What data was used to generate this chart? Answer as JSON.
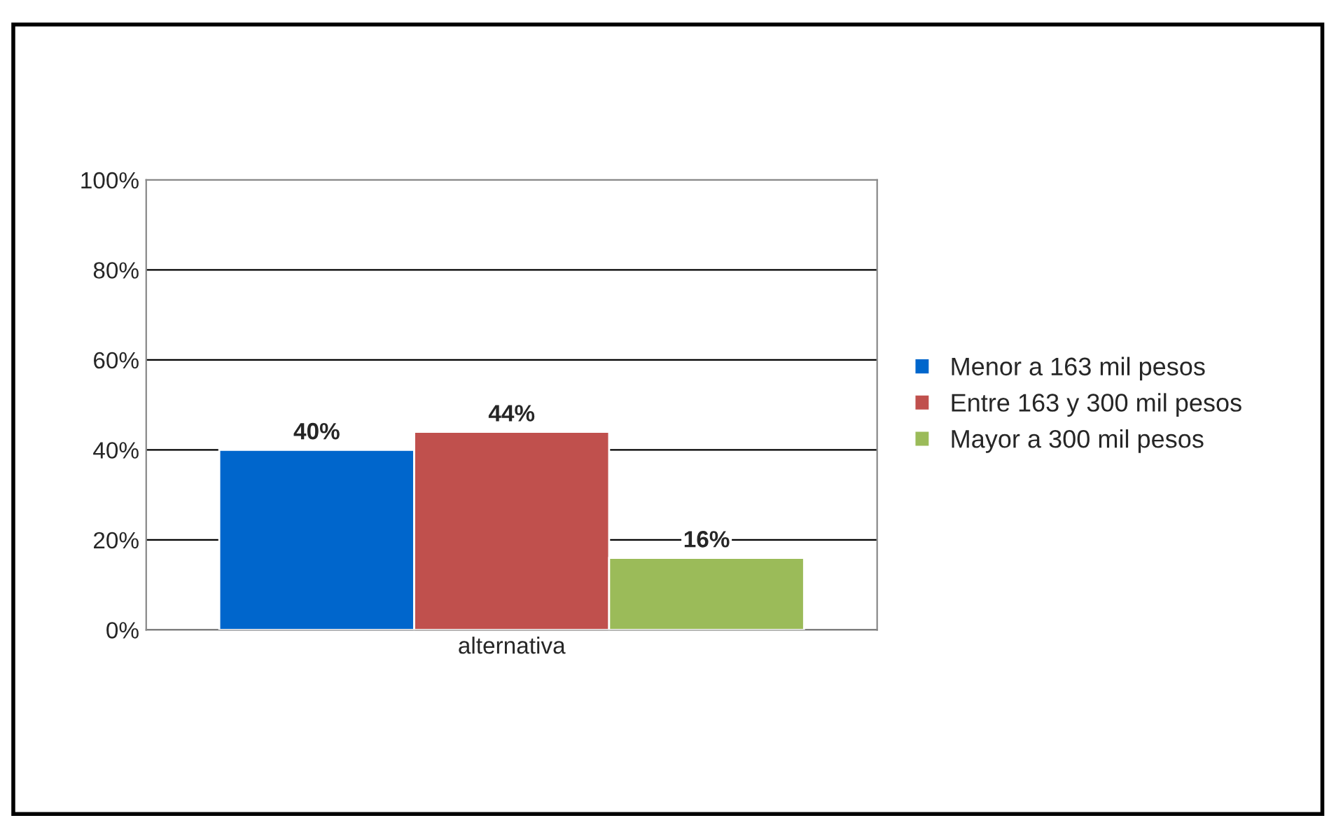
{
  "chart_data": {
    "type": "bar",
    "categories": [
      "alternativa"
    ],
    "series": [
      {
        "name": "Menor a 163 mil pesos",
        "color": "#0066cc",
        "values": [
          40
        ],
        "value_labels": [
          "40%"
        ]
      },
      {
        "name": "Entre 163 y 300 mil pesos",
        "color": "#c0504d",
        "values": [
          44
        ],
        "value_labels": [
          "44%"
        ]
      },
      {
        "name": "Mayor a 300 mil pesos",
        "color": "#9bbb59",
        "values": [
          16
        ],
        "value_labels": [
          "16%"
        ]
      }
    ],
    "ylim": [
      0,
      100
    ],
    "yticks": [
      {
        "value": 0,
        "label": "0%"
      },
      {
        "value": 20,
        "label": "20%"
      },
      {
        "value": 40,
        "label": "40%"
      },
      {
        "value": 60,
        "label": "60%"
      },
      {
        "value": 80,
        "label": "80%"
      },
      {
        "value": 100,
        "label": "100%"
      }
    ],
    "grid": "y",
    "legend": "right"
  }
}
